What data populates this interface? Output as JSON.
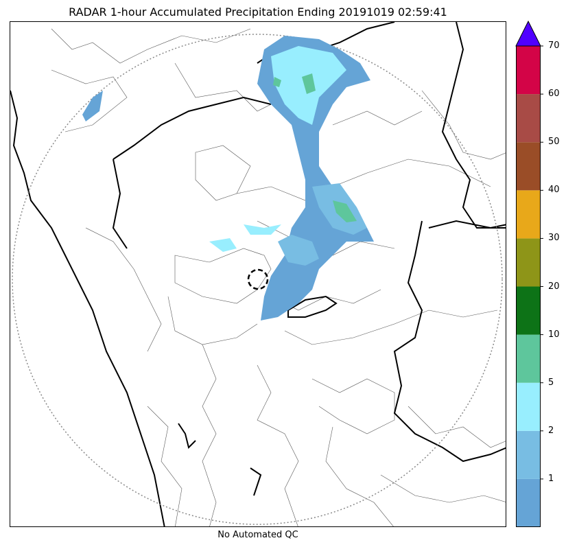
{
  "title": "RADAR 1-hour Accumulated Precipitation Ending 20191019 02:59:41",
  "caption": "No Automated QC",
  "colorbar": {
    "extend_color": "#5000ff",
    "bins": [
      {
        "from": 0,
        "to": 1,
        "color": "#65a4d6"
      },
      {
        "from": 1,
        "to": 2,
        "color": "#78bde3"
      },
      {
        "from": 2,
        "to": 5,
        "color": "#98eefe"
      },
      {
        "from": 5,
        "to": 10,
        "color": "#5ec69c"
      },
      {
        "from": 10,
        "to": 20,
        "color": "#0d7317"
      },
      {
        "from": 20,
        "to": 30,
        "color": "#8e9518"
      },
      {
        "from": 30,
        "to": 40,
        "color": "#e8a81a"
      },
      {
        "from": 40,
        "to": 50,
        "color": "#9a4d27"
      },
      {
        "from": 50,
        "to": 60,
        "color": "#a84b46"
      },
      {
        "from": 60,
        "to": 70,
        "color": "#d30447"
      }
    ],
    "ticks": [
      "1",
      "2",
      "5",
      "10",
      "20",
      "30",
      "40",
      "50",
      "60",
      "70"
    ]
  }
}
